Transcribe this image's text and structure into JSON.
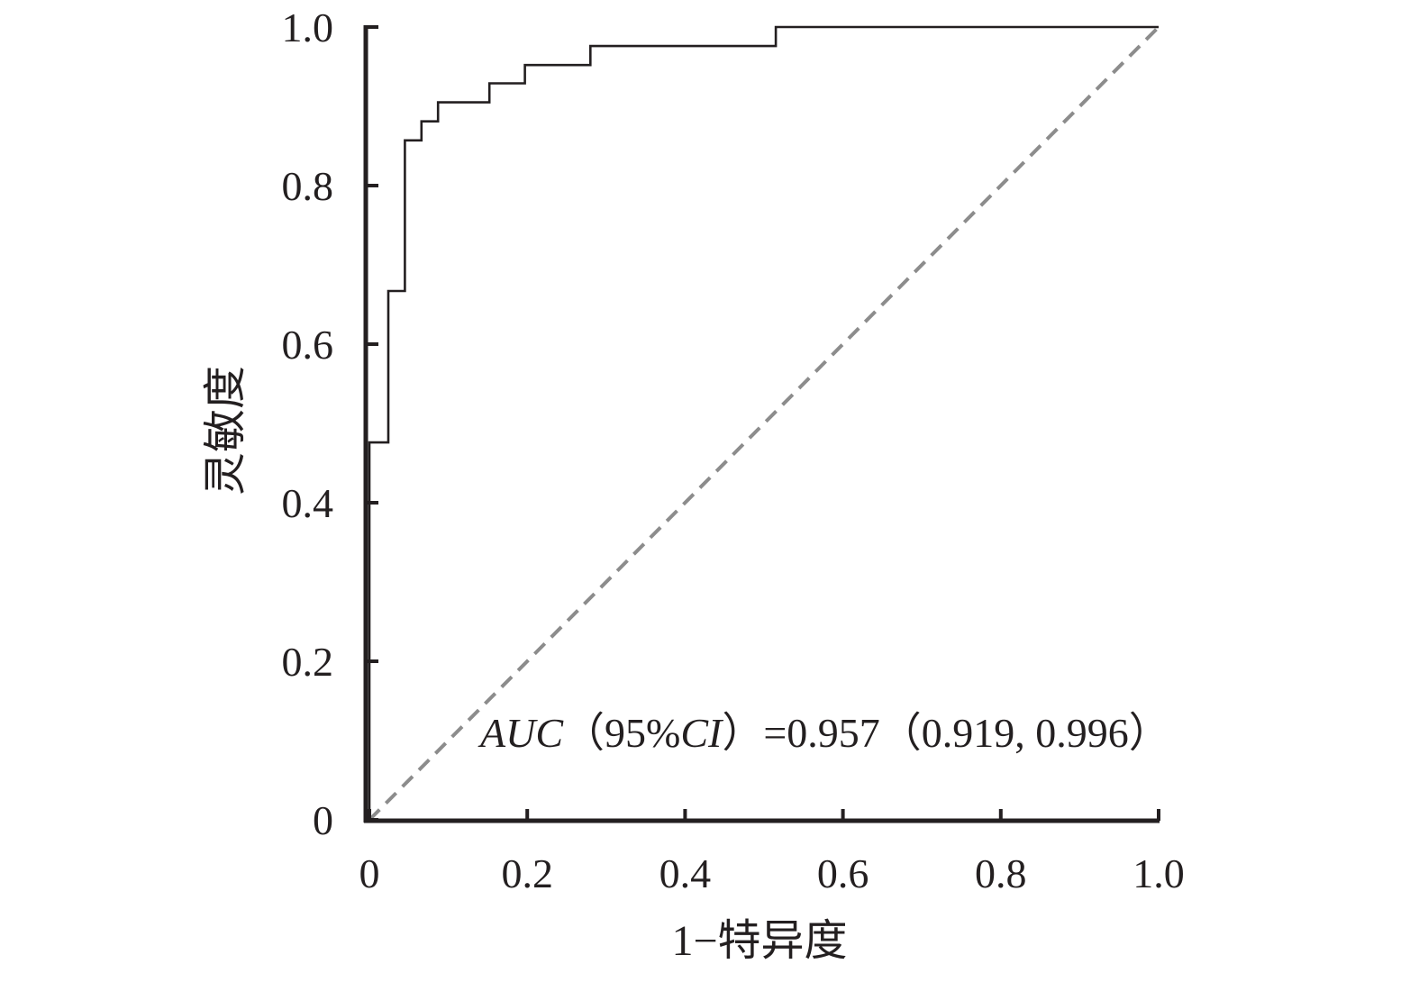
{
  "chart_data": {
    "type": "line",
    "title": "",
    "xlabel": "1−特异度",
    "ylabel": "灵敏度",
    "xlim": [
      0,
      1
    ],
    "ylim": [
      0,
      1
    ],
    "x_ticks": [
      0,
      0.2,
      0.4,
      0.6,
      0.8,
      1.0
    ],
    "x_tick_labels": [
      "0",
      "0.2",
      "0.4",
      "0.6",
      "0.8",
      "1.0"
    ],
    "y_ticks": [
      0,
      0.2,
      0.4,
      0.6,
      0.8,
      1.0
    ],
    "y_tick_labels": [
      "0",
      "0.2",
      "0.4",
      "0.6",
      "0.8",
      "1.0"
    ],
    "grid": false,
    "legend": "none",
    "annotation": {
      "auc_label": "AUC",
      "ci_open": "（95%",
      "ci_label": "CI",
      "ci_value": "）=0.957（0.919, 0.996）"
    },
    "series": [
      {
        "style": "solid",
        "color": "#231f20",
        "x": [
          0,
          0,
          0.024,
          0.024,
          0.045,
          0.045,
          0.066,
          0.066,
          0.087,
          0.087,
          0.152,
          0.152,
          0.197,
          0.197,
          0.28,
          0.28,
          0.515,
          0.515,
          1.0
        ],
        "y": [
          0,
          0.476,
          0.476,
          0.667,
          0.667,
          0.857,
          0.857,
          0.881,
          0.881,
          0.905,
          0.905,
          0.929,
          0.929,
          0.952,
          0.952,
          0.976,
          0.976,
          1.0,
          1.0
        ]
      },
      {
        "style": "dashed",
        "color": "#8c8c8c",
        "x": [
          0,
          1
        ],
        "y": [
          0,
          1
        ]
      }
    ]
  }
}
